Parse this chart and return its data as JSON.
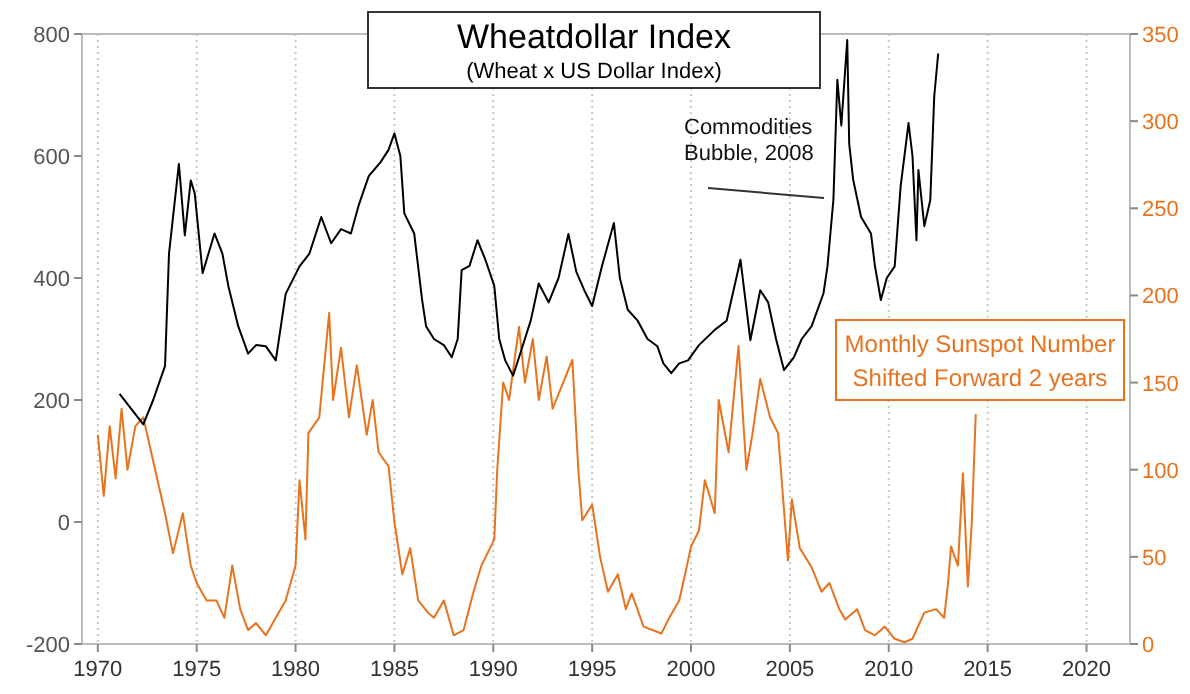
{
  "chart_data": {
    "type": "line",
    "title": "Wheatdollar Index",
    "subtitle": "(Wheat x US Dollar Index)",
    "annotations": [
      "Commodities Bubble, 2008"
    ],
    "xlim": [
      1969.2,
      2022.2
    ],
    "xticks": [
      1970,
      1975,
      1980,
      1985,
      1990,
      1995,
      2000,
      2005,
      2010,
      2015,
      2020
    ],
    "ylim": [
      -200,
      800
    ],
    "yticks": [
      -200,
      0,
      200,
      400,
      600,
      800
    ],
    "y2lim": [
      0,
      350
    ],
    "y2ticks": [
      0,
      50,
      100,
      150,
      200,
      250,
      300,
      350
    ],
    "grid": "x",
    "marker": "none",
    "series": [
      {
        "color": "#000000",
        "x": [
          1971.1,
          1971.7,
          1972.3,
          1972.8,
          1973.4,
          1973.6,
          1974.1,
          1974.4,
          1974.7,
          1974.9,
          1975.3,
          1975.9,
          1976.3,
          1976.6,
          1977.1,
          1977.6,
          1978.0,
          1978.5,
          1979.0,
          1979.5,
          1980.2,
          1980.7,
          1981.3,
          1981.8,
          1982.3,
          1982.8,
          1983.2,
          1983.7,
          1984.3,
          1984.7,
          1985.0,
          1985.3,
          1985.5,
          1986.0,
          1986.4,
          1986.6,
          1987.0,
          1987.5,
          1987.9,
          1988.2,
          1988.4,
          1988.8,
          1989.2,
          1989.6,
          1990.05,
          1990.3,
          1990.6,
          1991.0,
          1991.4,
          1991.9,
          1992.3,
          1992.8,
          1993.3,
          1993.8,
          1994.2,
          1994.6,
          1995.0,
          1995.5,
          1996.1,
          1996.4,
          1996.8,
          1997.3,
          1997.8,
          1998.3,
          1998.6,
          1999.0,
          1999.4,
          1999.85,
          2000.4,
          2001.2,
          2001.8,
          2002.5,
          2003.0,
          2003.5,
          2003.9,
          2004.3,
          2004.7,
          2005.2,
          2005.6,
          2006.1,
          2006.7,
          2006.9,
          2007.2,
          2007.4,
          2007.6,
          2007.9,
          2008.0,
          2008.2,
          2008.6,
          2009.1,
          2009.3,
          2009.6,
          2009.9,
          2010.3,
          2010.6,
          2011.0,
          2011.2,
          2011.4,
          2011.5,
          2011.8,
          2012.1,
          2012.3,
          2012.5
        ],
        "values": [
          210,
          185,
          160,
          200,
          256,
          440,
          587,
          470,
          560,
          539,
          408,
          473,
          440,
          387,
          321,
          276,
          290,
          288,
          265,
          374,
          419,
          440,
          500,
          457,
          480,
          473,
          520,
          567,
          590,
          610,
          637,
          600,
          506,
          473,
          364,
          321,
          300,
          290,
          270,
          300,
          413,
          420,
          462,
          430,
          387,
          300,
          265,
          240,
          280,
          331,
          391,
          360,
          400,
          472,
          410,
          380,
          354,
          420,
          490,
          400,
          348,
          330,
          300,
          288,
          260,
          244,
          260,
          265,
          290,
          315,
          330,
          430,
          298,
          380,
          360,
          300,
          249,
          270,
          300,
          321,
          375,
          419,
          528,
          725,
          650,
          790,
          620,
          561,
          500,
          473,
          420,
          364,
          400,
          419,
          550,
          654,
          600,
          462,
          577,
          485,
          528,
          698,
          768
        ]
      },
      {
        "name": "Monthly Sunspot Number Shifted Forward 2 years",
        "color": "#e8731e",
        "axis": "y2",
        "x": [
          1970.0,
          1970.3,
          1970.6,
          1970.9,
          1971.2,
          1971.5,
          1971.9,
          1972.3,
          1972.7,
          1973.0,
          1973.4,
          1973.8,
          1974.3,
          1974.7,
          1975.0,
          1975.5,
          1976.0,
          1976.4,
          1976.8,
          1977.2,
          1977.6,
          1978.0,
          1978.5,
          1979.0,
          1979.5,
          1980.0,
          1980.2,
          1980.5,
          1980.65,
          1981.2,
          1981.7,
          1981.9,
          1982.3,
          1982.7,
          1983.1,
          1983.6,
          1983.9,
          1984.2,
          1984.7,
          1985.0,
          1985.4,
          1985.8,
          1986.2,
          1986.7,
          1987.0,
          1987.5,
          1988.0,
          1988.5,
          1989.0,
          1989.4,
          1990.05,
          1990.2,
          1990.5,
          1990.8,
          1991.3,
          1991.6,
          1992.0,
          1992.3,
          1992.7,
          1993.0,
          1994.0,
          1994.3,
          1994.5,
          1995.0,
          1995.4,
          1995.8,
          1996.3,
          1996.7,
          1997.0,
          1997.6,
          1998.5,
          1998.9,
          1999.4,
          1999.7,
          2000.0,
          2000.4,
          2000.7,
          2001.2,
          2001.4,
          2001.9,
          2002.4,
          2002.8,
          2003.1,
          2003.5,
          2004.0,
          2004.4,
          2004.9,
          2005.1,
          2005.5,
          2006.1,
          2006.6,
          2007.0,
          2007.5,
          2007.8,
          2008.4,
          2008.8,
          2009.3,
          2009.8,
          2010.3,
          2010.8,
          2011.2,
          2011.8,
          2012.4,
          2012.8,
          2013.0,
          2013.15,
          2013.5,
          2013.75,
          2014.0,
          2014.2,
          2014.4
        ],
        "values": [
          120,
          85,
          125,
          95,
          135,
          100,
          125,
          130,
          110,
          95,
          75,
          52,
          75,
          45,
          35,
          25,
          25,
          15,
          45,
          20,
          8,
          12,
          5,
          15,
          25,
          45,
          94,
          60,
          121,
          130,
          190,
          140,
          170,
          130,
          160,
          120,
          140,
          110,
          102,
          70,
          40,
          55,
          25,
          18,
          15,
          25,
          5,
          8,
          30,
          45,
          60,
          100,
          150,
          140,
          182,
          150,
          175,
          140,
          165,
          135,
          163,
          100,
          71,
          80,
          50,
          30,
          40,
          20,
          29,
          10,
          6,
          15,
          25,
          40,
          56,
          65,
          94,
          75,
          140,
          110,
          171,
          100,
          120,
          152,
          130,
          121,
          48,
          83,
          55,
          44,
          30,
          35,
          20,
          14,
          20,
          8,
          5,
          10,
          3,
          1,
          3,
          18,
          20,
          15,
          35,
          56,
          45,
          98,
          33,
          70,
          132
        ]
      }
    ]
  }
}
